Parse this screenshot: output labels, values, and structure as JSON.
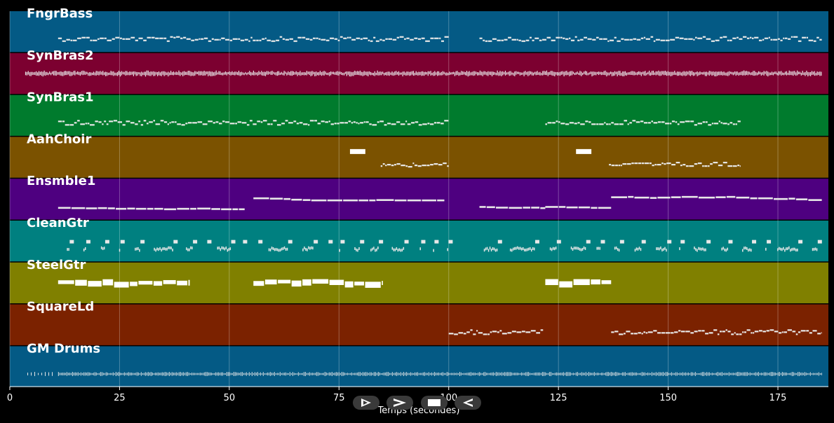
{
  "chart_data": {
    "type": "piano-roll",
    "title": "",
    "xlabel": "Temps (secondes)",
    "ylabel": "",
    "xlim": [
      0,
      186.5
    ],
    "x_ticks": [
      0,
      25,
      50,
      75,
      100,
      125,
      150,
      175
    ],
    "grid": true,
    "tracks": [
      {
        "name": "FngrBass",
        "color": "#045a85",
        "note_style": "small",
        "segments": [
          [
            11,
            100
          ],
          [
            107,
            185
          ]
        ]
      },
      {
        "name": "SynBras2",
        "color": "#7c0030",
        "note_style": "dense",
        "segments": [
          [
            3.5,
            185
          ]
        ]
      },
      {
        "name": "SynBras1",
        "color": "#007b2d",
        "note_style": "small",
        "segments": [
          [
            11,
            100
          ],
          [
            122,
            166.5
          ]
        ]
      },
      {
        "name": "AahChoir",
        "color": "#7b5200",
        "note_style": "small",
        "segments": [
          [
            84.5,
            100
          ],
          [
            136.5,
            166.5
          ]
        ],
        "blocks": [
          [
            77.5,
            81
          ],
          [
            129,
            132.5
          ]
        ]
      },
      {
        "name": "Ensmble1",
        "color": "#4e0080",
        "note_style": "long",
        "segments": [
          [
            11,
            53.5
          ],
          [
            55.5,
            99
          ],
          [
            107,
            122
          ],
          [
            122,
            137
          ],
          [
            137,
            185
          ]
        ]
      },
      {
        "name": "CleanGtr",
        "color": "#008080",
        "note_style": "mixed",
        "segments": [
          [
            13,
            100
          ],
          [
            108,
            185
          ]
        ]
      },
      {
        "name": "SteelGtr",
        "color": "#808000",
        "note_style": "block",
        "segments": [
          [
            11,
            41
          ],
          [
            55.5,
            85
          ],
          [
            122,
            137
          ]
        ]
      },
      {
        "name": "SquareLd",
        "color": "#7b2200",
        "note_style": "small",
        "segments": [
          [
            100,
            121.5
          ],
          [
            137,
            185
          ]
        ]
      },
      {
        "name": "GM Drums",
        "color": "#045a85",
        "note_style": "drums",
        "segments": [
          [
            4,
            10
          ],
          [
            11,
            185
          ]
        ]
      }
    ]
  },
  "player": {
    "buttons": [
      {
        "name": "play-button",
        "glyph": "▷"
      },
      {
        "name": "forward-button",
        "glyph": "▷"
      },
      {
        "name": "stop-button",
        "glyph": "■"
      },
      {
        "name": "rewind-button",
        "glyph": "◁"
      }
    ]
  }
}
